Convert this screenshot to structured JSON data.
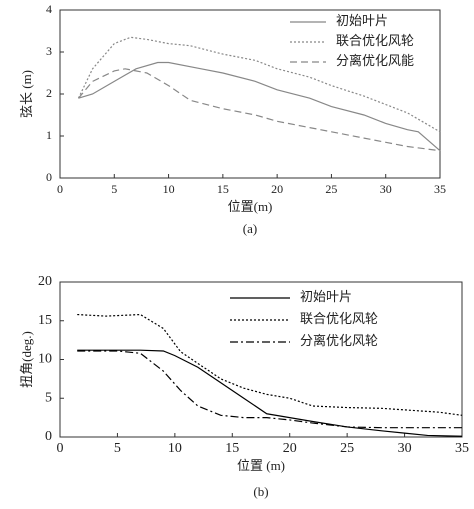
{
  "chart_data": [
    {
      "type": "line",
      "caption": "(a)",
      "xlabel": "位置(m)",
      "ylabel": "弦长 (m)",
      "xlim": [
        0,
        35
      ],
      "ylim": [
        0,
        4
      ],
      "xticks": [
        0,
        5,
        10,
        15,
        20,
        25,
        30,
        35
      ],
      "yticks": [
        0,
        1,
        2,
        3,
        4
      ],
      "series": [
        {
          "name": "初始叶片",
          "color": "#888888",
          "style": "solid",
          "x": [
            1.7,
            3,
            5,
            7,
            9,
            10,
            13,
            15,
            18,
            20,
            23,
            25,
            28,
            30,
            32,
            33,
            35
          ],
          "values": [
            1.9,
            2.0,
            2.3,
            2.6,
            2.75,
            2.75,
            2.6,
            2.5,
            2.3,
            2.1,
            1.9,
            1.7,
            1.5,
            1.3,
            1.15,
            1.1,
            0.65
          ]
        },
        {
          "name": "联合优化风轮",
          "color": "#888888",
          "style": "dotted",
          "x": [
            1.7,
            3,
            5,
            6.5,
            8,
            10,
            12,
            15,
            18,
            20,
            23,
            25,
            28,
            30,
            32,
            35
          ],
          "values": [
            1.9,
            2.6,
            3.2,
            3.35,
            3.3,
            3.2,
            3.15,
            2.95,
            2.8,
            2.6,
            2.4,
            2.2,
            1.95,
            1.75,
            1.55,
            1.1
          ]
        },
        {
          "name": "分离优化风能",
          "color": "#888888",
          "style": "dashed",
          "x": [
            1.7,
            3,
            5,
            6,
            8,
            10,
            12,
            15,
            18,
            20,
            23,
            25,
            28,
            30,
            32,
            35
          ],
          "values": [
            1.9,
            2.3,
            2.55,
            2.6,
            2.5,
            2.2,
            1.85,
            1.65,
            1.5,
            1.35,
            1.2,
            1.1,
            0.95,
            0.85,
            0.75,
            0.65
          ]
        }
      ]
    },
    {
      "type": "line",
      "caption": "(b)",
      "xlabel": "位置 (m)",
      "ylabel": "扭角(deg.)",
      "xlim": [
        0,
        35
      ],
      "ylim": [
        0,
        20
      ],
      "xticks": [
        0,
        5,
        10,
        15,
        20,
        25,
        30,
        35
      ],
      "yticks": [
        0,
        5,
        10,
        15,
        20
      ],
      "series": [
        {
          "name": "初始叶片",
          "color": "#000000",
          "style": "solid",
          "x": [
            1.5,
            7,
            9,
            10,
            12,
            14,
            16,
            18,
            20,
            22,
            25,
            28,
            30,
            32,
            35
          ],
          "values": [
            11.2,
            11.2,
            11.1,
            10.5,
            9,
            7,
            5,
            3,
            2.5,
            2,
            1.3,
            0.8,
            0.5,
            0.2,
            0.1
          ]
        },
        {
          "name": "联合优化风轮",
          "color": "#000000",
          "style": "dotted",
          "x": [
            1.5,
            4,
            7,
            9,
            10.5,
            12,
            14,
            16,
            18,
            20,
            22,
            25,
            28,
            30,
            33,
            35
          ],
          "values": [
            15.8,
            15.6,
            15.8,
            14,
            11,
            9.5,
            7.5,
            6.3,
            5.5,
            5,
            4,
            3.8,
            3.7,
            3.5,
            3.2,
            2.8
          ]
        },
        {
          "name": "分离优化风轮",
          "color": "#000000",
          "style": "dashdot",
          "x": [
            1.5,
            5,
            7,
            9,
            10.5,
            12,
            14,
            16,
            18,
            20,
            22,
            25,
            28,
            30,
            32,
            35
          ],
          "values": [
            11.1,
            11.1,
            10.8,
            8.5,
            6,
            4,
            2.8,
            2.5,
            2.5,
            2.2,
            1.8,
            1.3,
            1.2,
            1.2,
            1.2,
            1.2
          ]
        }
      ]
    }
  ]
}
